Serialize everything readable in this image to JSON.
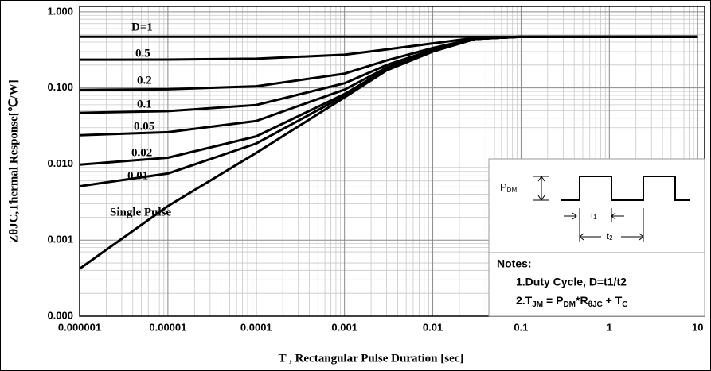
{
  "chart_data": {
    "type": "line",
    "x_label": "T , Rectangular Pulse Duration [sec]",
    "y_label": "ZθJC,Thermal Response[℃/W]",
    "log_x": true,
    "log_y": true,
    "grid": true,
    "x": [
      1e-06,
      1e-05,
      0.0001,
      0.001,
      0.003,
      0.01,
      0.03,
      0.1,
      1,
      10
    ],
    "series": [
      {
        "name": "D=1",
        "color": "#000000",
        "values": [
          0.47,
          0.47,
          0.47,
          0.47,
          0.47,
          0.47,
          0.47,
          0.47,
          0.47,
          0.47
        ]
      },
      {
        "name": "0.5",
        "color": "#000000",
        "values": [
          0.235,
          0.236,
          0.242,
          0.273,
          0.32,
          0.385,
          0.455,
          0.47,
          0.47,
          0.47
        ]
      },
      {
        "name": "0.2",
        "color": "#000000",
        "values": [
          0.094,
          0.096,
          0.105,
          0.154,
          0.23,
          0.334,
          0.446,
          0.47,
          0.47,
          0.47
        ]
      },
      {
        "name": "0.1",
        "color": "#000000",
        "values": [
          0.047,
          0.0495,
          0.0596,
          0.115,
          0.2,
          0.317,
          0.443,
          0.47,
          0.47,
          0.47
        ]
      },
      {
        "name": "0.05",
        "color": "#000000",
        "values": [
          0.0239,
          0.0262,
          0.0368,
          0.095,
          0.185,
          0.309,
          0.441,
          0.47,
          0.47,
          0.47
        ]
      },
      {
        "name": "0.02",
        "color": "#000000",
        "values": [
          0.0098,
          0.0121,
          0.0231,
          0.083,
          0.176,
          0.303,
          0.441,
          0.47,
          0.47,
          0.47
        ]
      },
      {
        "name": "0.01",
        "color": "#000000",
        "values": [
          0.0051,
          0.0075,
          0.0186,
          0.079,
          0.173,
          0.302,
          0.44,
          0.47,
          0.47,
          0.47
        ]
      },
      {
        "name": "Single Pulse",
        "color": "#000000",
        "values": [
          0.00042,
          0.0028,
          0.014,
          0.075,
          0.17,
          0.3,
          0.44,
          0.47,
          0.47,
          0.47
        ]
      }
    ],
    "xlim": [
      1e-06,
      12
    ],
    "ylim": [
      0.0001,
      1.18
    ],
    "xticks": [
      1e-06,
      1e-05,
      0.0001,
      0.001,
      0.01,
      0.1,
      1,
      10
    ],
    "yticks": [
      {
        "value": 0.0001,
        "label": "0.000"
      },
      {
        "value": 0.001,
        "label": "0.001"
      },
      {
        "value": 0.01,
        "label": "0.010"
      },
      {
        "value": 0.1,
        "label": "0.100"
      },
      {
        "value": 1,
        "label": "1.000"
      }
    ]
  },
  "inset": {
    "pdm": [
      "P",
      "DM"
    ],
    "t1": [
      "t",
      "1"
    ],
    "t2": [
      "t",
      "2"
    ],
    "notes_title": "Notes:",
    "note1": "1.Duty  Cycle, D=t1/t2",
    "note2": [
      "2.T",
      "JM",
      " = P",
      "DM",
      "*R",
      "θJC",
      " + T",
      "C"
    ]
  }
}
